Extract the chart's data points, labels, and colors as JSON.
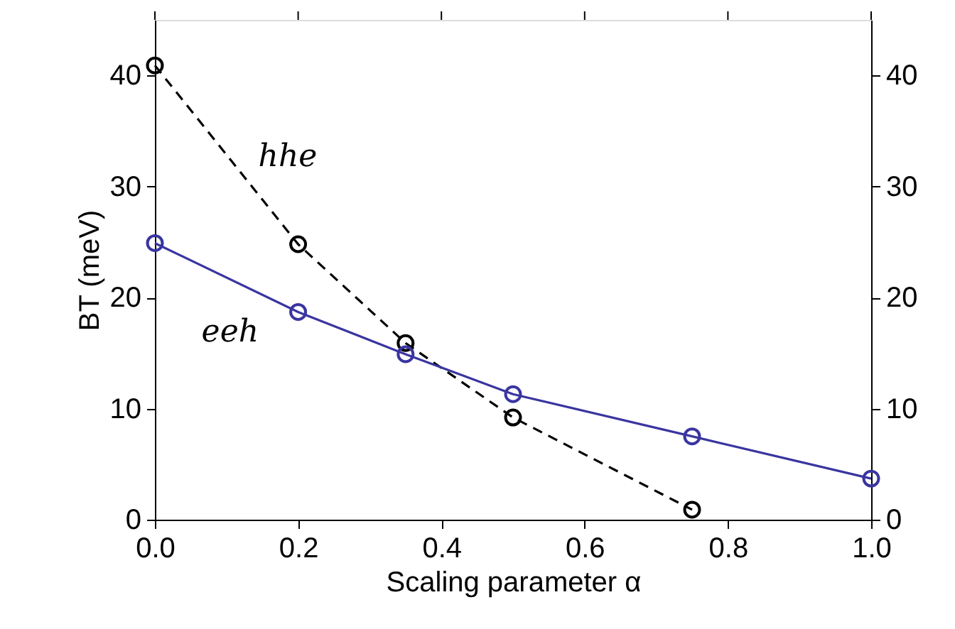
{
  "chart_data": {
    "type": "line",
    "xlabel": "Scaling parameter α",
    "ylabel": "BT (meV)",
    "xlim": [
      0,
      1
    ],
    "xticks": [
      {
        "value": 0,
        "label": "0.0"
      },
      0.2,
      0.4,
      0.6,
      0.8,
      {
        "value": 1,
        "label": "1.0"
      }
    ],
    "ylim": [
      0,
      45
    ],
    "yticks": [
      0,
      10,
      20,
      30,
      40
    ],
    "y2lim": [
      0,
      45
    ],
    "y2ticks": [
      0,
      10,
      20,
      30,
      40
    ],
    "grid": false,
    "marker": "circle",
    "series": [
      {
        "name": "hhe",
        "color": "#000000",
        "line_style": "dashed",
        "x": [
          0,
          0.2,
          0.35,
          0.5,
          0.75
        ],
        "values": [
          40.9,
          24.8,
          15.9,
          9.2,
          0.9
        ]
      },
      {
        "name": "eeh",
        "color": "#3a35a0",
        "line_style": "solid",
        "x": [
          0,
          0.2,
          0.35,
          0.5,
          0.75,
          1
        ],
        "values": [
          24.9,
          18.7,
          14.9,
          11.3,
          7.5,
          3.7
        ]
      }
    ]
  }
}
